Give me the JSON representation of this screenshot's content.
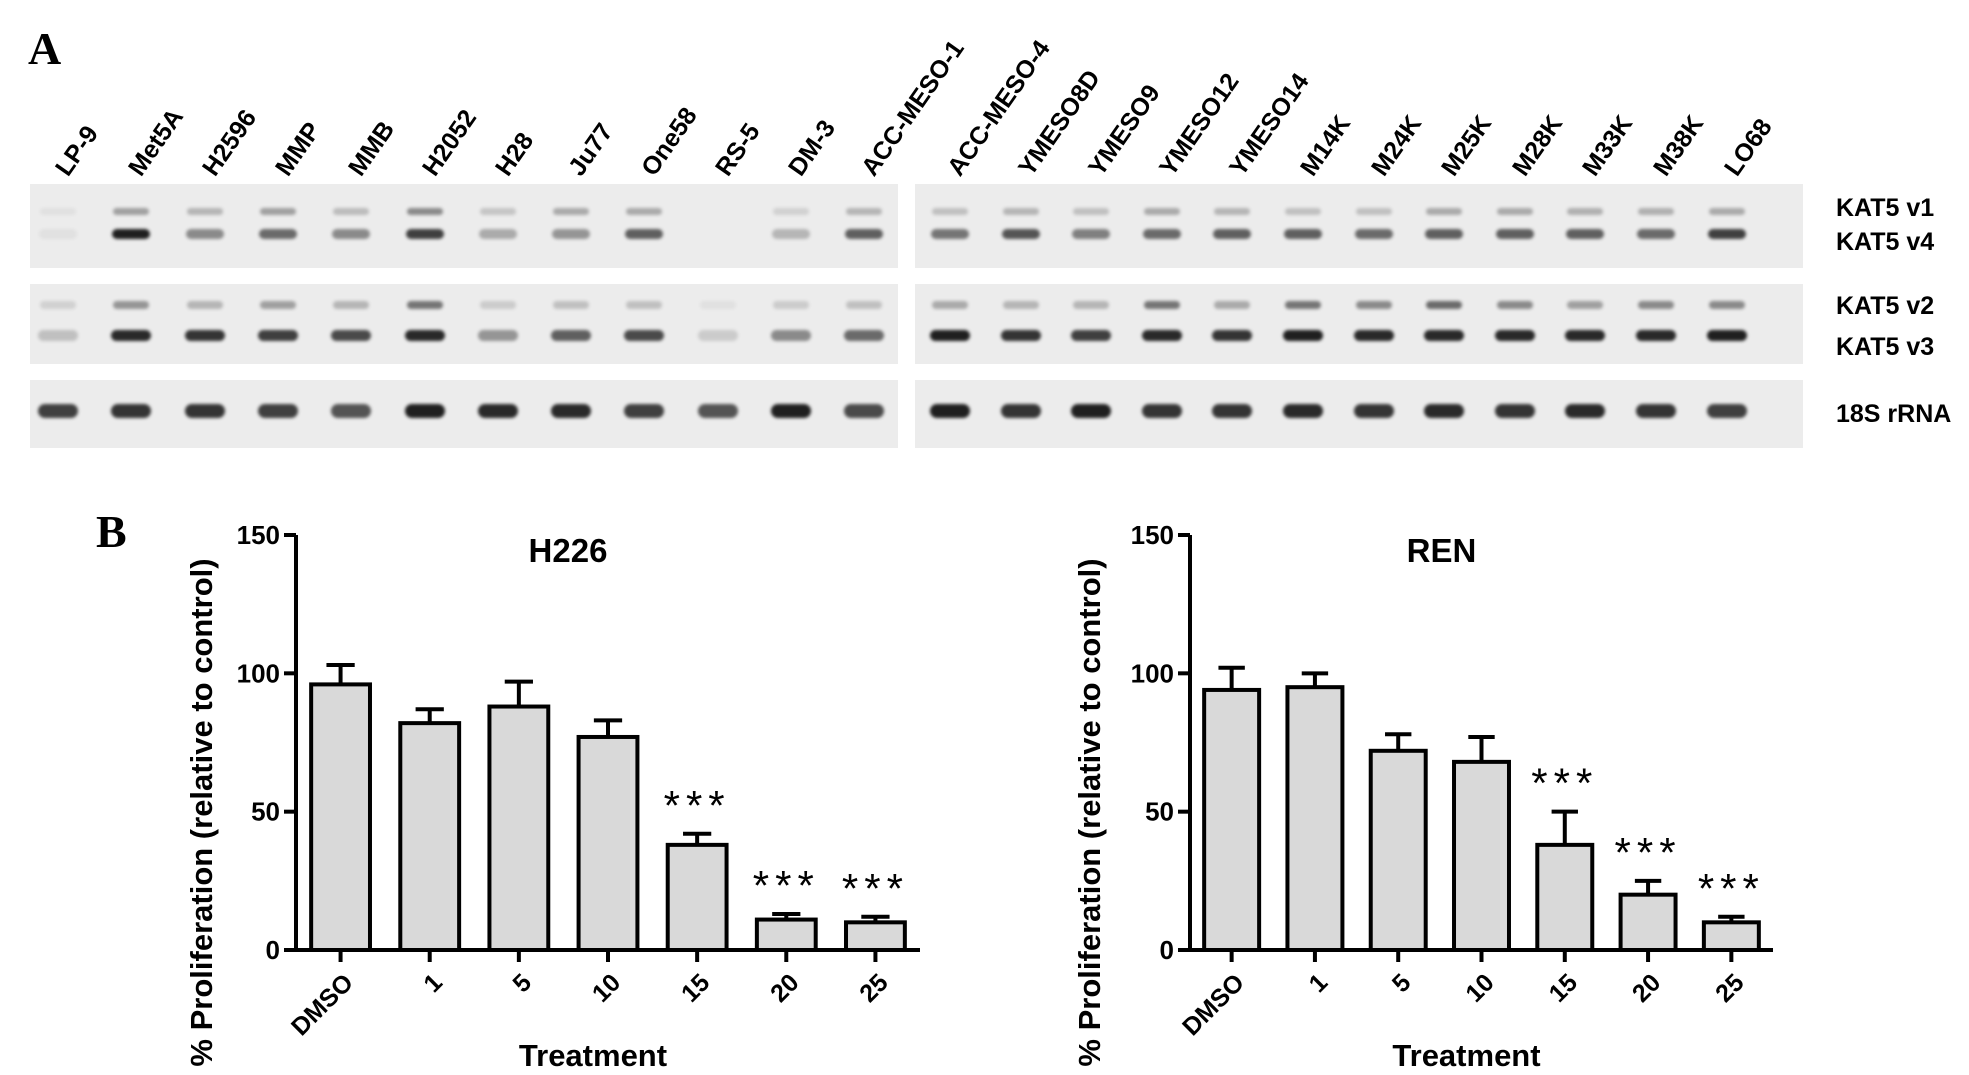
{
  "panel_a": {
    "letter": "A",
    "lanes_left": [
      "LP-9",
      "Met5A",
      "H2596",
      "MMP",
      "MMB",
      "H2052",
      "H28",
      "Ju77",
      "One58",
      "RS-5",
      "DM-3",
      "ACC-MESO-1"
    ],
    "lanes_right": [
      "ACC-MESO-4",
      "YMESO8D",
      "YMESO9",
      "YMESO12",
      "YMESO14",
      "M14K",
      "M24K",
      "M25K",
      "M28K",
      "M33K",
      "M38K",
      "LO68"
    ],
    "band_labels": [
      "KAT5 v1",
      "KAT5 v4",
      "KAT5 v2",
      "KAT5 v3",
      "18S rRNA"
    ],
    "band_intensity": {
      "v1_left": [
        0.05,
        0.35,
        0.25,
        0.35,
        0.22,
        0.45,
        0.18,
        0.3,
        0.3,
        0.0,
        0.12,
        0.25
      ],
      "v1_right": [
        0.2,
        0.25,
        0.2,
        0.3,
        0.25,
        0.2,
        0.2,
        0.3,
        0.3,
        0.28,
        0.28,
        0.3
      ],
      "v4_left": [
        0.05,
        0.95,
        0.45,
        0.6,
        0.45,
        0.8,
        0.3,
        0.4,
        0.65,
        0.0,
        0.25,
        0.65
      ],
      "v4_right": [
        0.55,
        0.7,
        0.5,
        0.6,
        0.65,
        0.65,
        0.6,
        0.65,
        0.65,
        0.65,
        0.6,
        0.8
      ],
      "v2_left": [
        0.12,
        0.4,
        0.25,
        0.35,
        0.25,
        0.55,
        0.15,
        0.2,
        0.2,
        0.05,
        0.15,
        0.2
      ],
      "v2_right": [
        0.3,
        0.25,
        0.25,
        0.55,
        0.3,
        0.55,
        0.45,
        0.6,
        0.45,
        0.35,
        0.45,
        0.45
      ],
      "v3_left": [
        0.2,
        0.9,
        0.85,
        0.8,
        0.75,
        0.9,
        0.4,
        0.65,
        0.75,
        0.15,
        0.45,
        0.6
      ],
      "v3_right": [
        0.95,
        0.85,
        0.8,
        0.9,
        0.85,
        0.95,
        0.9,
        0.9,
        0.9,
        0.9,
        0.9,
        0.95
      ],
      "rrna_left": [
        0.8,
        0.85,
        0.85,
        0.8,
        0.7,
        0.95,
        0.9,
        0.9,
        0.8,
        0.7,
        0.95,
        0.75
      ],
      "rrna_right": [
        0.95,
        0.85,
        0.95,
        0.85,
        0.85,
        0.9,
        0.85,
        0.9,
        0.85,
        0.9,
        0.85,
        0.8
      ]
    }
  },
  "panel_b_letter": "B",
  "colors": {
    "bar_fill": "#d9d9d9",
    "gel_bg": "#ececec",
    "band": "#1a1a1a"
  },
  "chart_data": [
    {
      "type": "bar",
      "title": "H226",
      "xlabel": "Treatment",
      "ylabel": "% Proliferation (relative to control)",
      "ylim": [
        0,
        150
      ],
      "yticks": [
        0,
        50,
        100,
        150
      ],
      "categories": [
        "DMSO",
        "1",
        "5",
        "10",
        "15",
        "20",
        "25"
      ],
      "values": [
        96,
        82,
        88,
        77,
        38,
        11,
        10
      ],
      "errors": [
        7,
        5,
        9,
        6,
        4,
        2,
        2
      ],
      "annotations": [
        "",
        "",
        "",
        "",
        "***",
        "***",
        "***"
      ]
    },
    {
      "type": "bar",
      "title": "REN",
      "xlabel": "Treatment",
      "ylabel": "% Proliferation (relative to control)",
      "ylim": [
        0,
        150
      ],
      "yticks": [
        0,
        50,
        100,
        150
      ],
      "categories": [
        "DMSO",
        "1",
        "5",
        "10",
        "15",
        "20",
        "25"
      ],
      "values": [
        94,
        95,
        72,
        68,
        38,
        20,
        10
      ],
      "errors": [
        8,
        5,
        6,
        9,
        12,
        5,
        2
      ],
      "annotations": [
        "",
        "",
        "",
        "",
        "***",
        "***",
        "***"
      ]
    }
  ]
}
